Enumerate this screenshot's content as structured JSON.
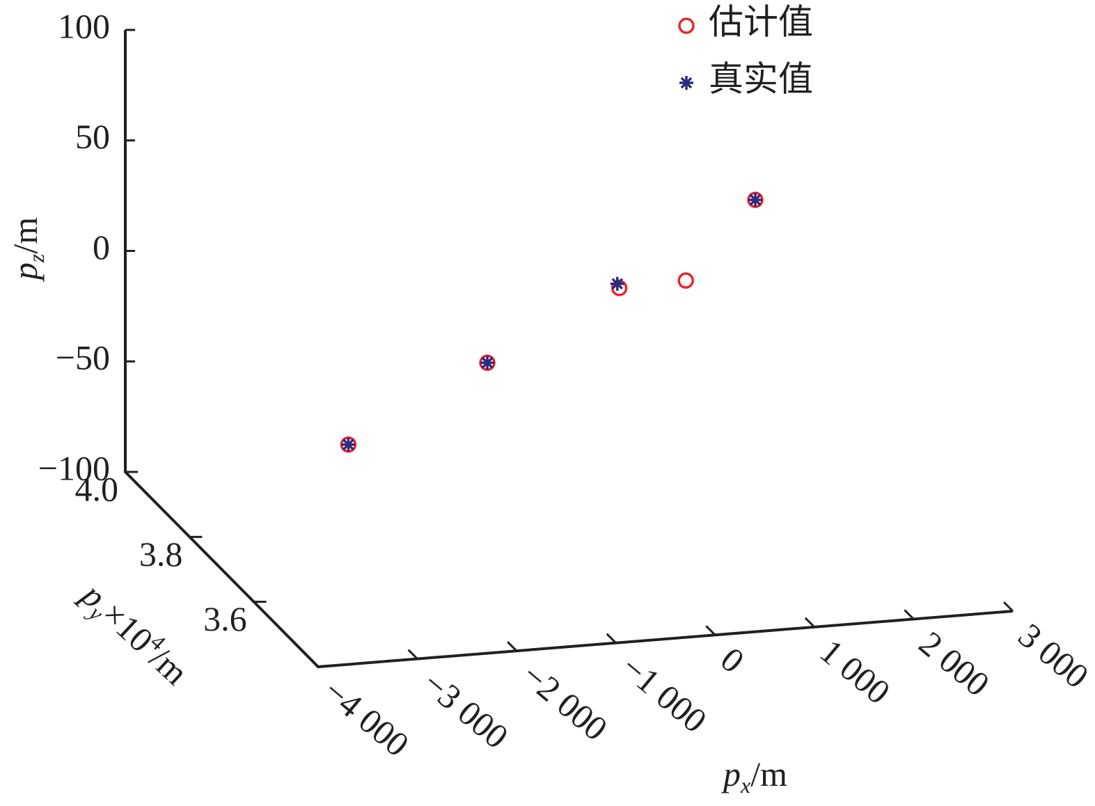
{
  "chart_data": {
    "type": "scatter3d",
    "x_label": [
      "p",
      "x",
      "/m"
    ],
    "y_label": [
      "p",
      "y",
      "×10",
      "4",
      "/m"
    ],
    "z_label": [
      "p",
      "z",
      "/m"
    ],
    "xlim": [
      -4000,
      3000
    ],
    "xticks": [
      {
        "value": -4000,
        "label": "−4 000"
      },
      {
        "value": -3000,
        "label": "−3 000"
      },
      {
        "value": -2000,
        "label": "−2 000"
      },
      {
        "value": -1000,
        "label": "−1 000"
      },
      0,
      {
        "value": 1000,
        "label": "1 000"
      },
      {
        "value": 2000,
        "label": "2 000"
      },
      {
        "value": 3000,
        "label": "3 000"
      }
    ],
    "ylim": [
      3.4,
      4.0
    ],
    "yticks": [
      {
        "value": 4,
        "label": "4.0"
      },
      3.8,
      3.6
    ],
    "zlim": [
      -100,
      100
    ],
    "zticks": [
      100,
      50,
      0,
      {
        "value": -50,
        "label": "−50"
      },
      {
        "value": -100,
        "label": "−100"
      }
    ],
    "series": [
      {
        "name": "估计值",
        "color": "#e8262e",
        "marker": "circle",
        "x": [
          -2400,
          -1000,
          330,
          1000,
          1700
        ],
        "y": [
          3.8,
          3.8,
          3.8,
          3.8,
          3.8
        ],
        "z": [
          -64,
          -32,
          -3,
          -2,
          32
        ]
      },
      {
        "name": "真实值",
        "color": "#2e2a7c",
        "marker": "star",
        "x": [
          -2400,
          -1000,
          310,
          1700
        ],
        "y": [
          3.8,
          3.8,
          3.8,
          3.8
        ],
        "z": [
          -64,
          -32,
          -1,
          32
        ]
      }
    ]
  }
}
